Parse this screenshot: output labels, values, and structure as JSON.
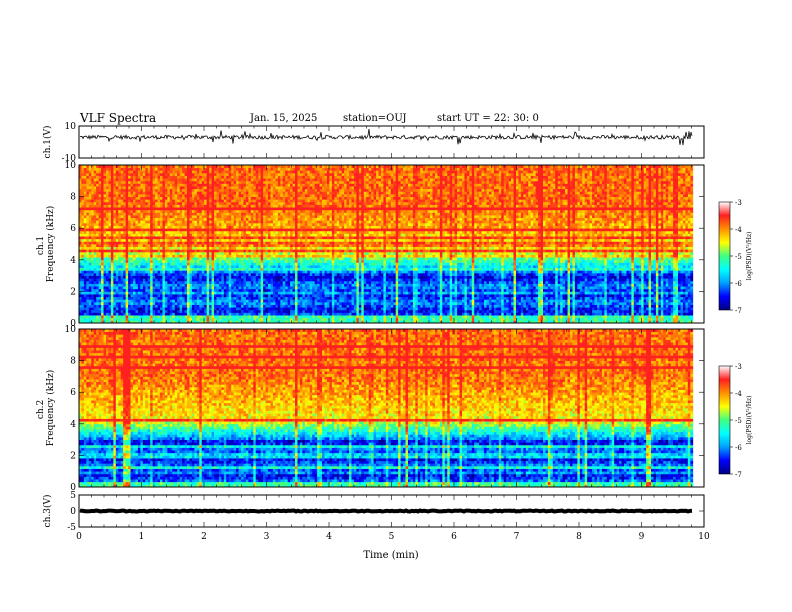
{
  "header": {
    "title": "VLF Spectra",
    "date": "Jan. 15, 2025",
    "station": "station=OUJ",
    "start_ut": "start UT =  22: 30: 0"
  },
  "colors": {
    "colormap": [
      "#000080",
      "#0000ff",
      "#00a0ff",
      "#00ffff",
      "#40ff80",
      "#ffff00",
      "#ff9000",
      "#ff2020",
      "#ffffff"
    ]
  },
  "chart_data": [
    {
      "type": "line",
      "panel": "ch1-waveform",
      "ylabel": "ch.1(V)",
      "ylim": [
        -10,
        10
      ],
      "yticks": [
        "10",
        "-10"
      ],
      "xlim": [
        0,
        10
      ],
      "mean": 3.0,
      "noise_amplitude": 1.2
    },
    {
      "type": "heatmap",
      "panel": "ch1-spectrogram",
      "ylabel": "ch.1\nFrequency (kHz)",
      "ylabel_lines": [
        "ch.1",
        "Frequency (kHz)"
      ],
      "ylim": [
        0,
        10
      ],
      "yticks": [
        "0",
        "2",
        "4",
        "6",
        "8",
        "10"
      ],
      "xlim": [
        0,
        10
      ],
      "data_end_min": 9.82,
      "colorbar": {
        "label": "log(PSD)(V²/Hz)",
        "range": [
          -7,
          -3
        ],
        "ticks": [
          "-3",
          "-4",
          "-5",
          "-6",
          "-7"
        ]
      },
      "profile": {
        "low_band_khz": [
          0.5,
          3.2
        ],
        "transition_khz": 4.5,
        "high_level": -3.4
      }
    },
    {
      "type": "heatmap",
      "panel": "ch2-spectrogram",
      "ylabel": "ch.2\nFrequency (kHz)",
      "ylabel_lines": [
        "ch.2",
        "Frequency (kHz)"
      ],
      "ylim": [
        0,
        10
      ],
      "yticks": [
        "0",
        "2",
        "4",
        "6",
        "8",
        "10"
      ],
      "xlim": [
        0,
        10
      ],
      "data_end_min": 9.82,
      "colorbar": {
        "label": "log(PSD)(V²/Hz)",
        "range": [
          -7,
          -3
        ],
        "ticks": [
          "-3",
          "-4",
          "-5",
          "-6",
          "-7"
        ]
      },
      "profile": {
        "low_band_khz": [
          0.4,
          3.0
        ],
        "transition_khz": 4.2,
        "high_level": -3.4
      }
    },
    {
      "type": "line",
      "panel": "ch3-waveform",
      "ylabel": "ch.3(V)",
      "ylim": [
        -5,
        5
      ],
      "yticks": [
        "5",
        "0",
        "-5"
      ],
      "xlim": [
        0,
        10
      ],
      "xticks": [
        "0",
        "1",
        "2",
        "3",
        "4",
        "5",
        "6",
        "7",
        "8",
        "9",
        "10"
      ],
      "xlabel": "Time (min)",
      "mean": 0,
      "noise_amplitude": 0.15
    }
  ]
}
